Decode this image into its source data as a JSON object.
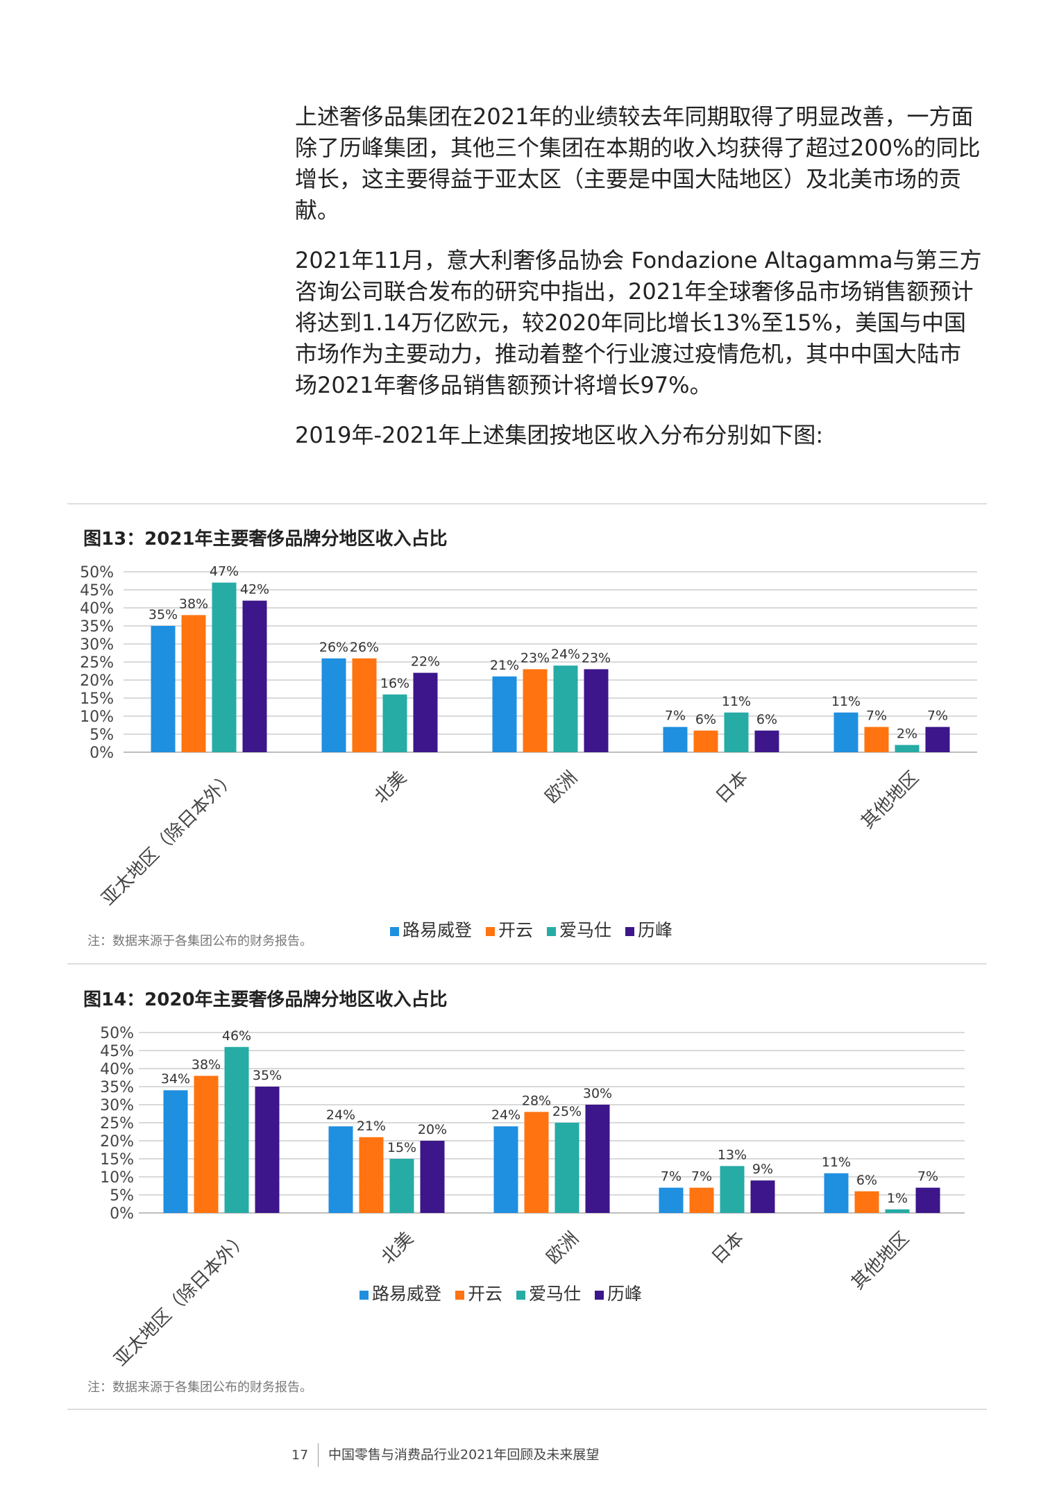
{
  "intro": {
    "p1": "上述奢侈品集团在2021年的业绩较去年同期取得了明显改善，一方面除了历峰集团，其他三个集团在本期的收入均获得了超过200%的同比增长，这主要得益于亚太区（主要是中国大陆地区）及北美市场的贡献。",
    "p2": "2021年11月，意大利奢侈品协会 Fondazione Altagamma与第三方咨询公司联合发布的研究中指出，2021年全球奢侈品市场销售额预计将达到1.14万亿欧元，较2020年同比增长13%至15%，美国与中国市场作为主要动力，推动着整个行业渡过疫情危机，其中中国大陆市场2021年奢侈品销售额预计将增长97%。",
    "p3": "2019年-2021年上述集团按地区收入分布分别如下图:"
  },
  "figures": {
    "fig13": {
      "title": "图13：2021年主要奢侈品牌分地区收入占比",
      "note": "注：数据来源于各集团公布的财务报告。"
    },
    "fig14": {
      "title": "图14：2020年主要奢侈品牌分地区收入占比",
      "note": "注：数据来源于各集团公布的财务报告。"
    }
  },
  "footer": {
    "page_number": "17",
    "publication": "中国零售与消费品行业2021年回顾及未来展望"
  },
  "colors": {
    "lv": "#1f8fe0",
    "kering": "#ff7410",
    "hermes": "#26aba5",
    "richemont": "#3c168a"
  },
  "chart_data": [
    {
      "type": "bar",
      "title": "图13：2021年主要奢侈品牌分地区收入占比",
      "categories": [
        "亚太地区（除日本外）",
        "北美",
        "欧洲",
        "日本",
        "其他地区"
      ],
      "y_ticks": [
        "50%",
        "45%",
        "40%",
        "35%",
        "30%",
        "25%",
        "20%",
        "15%",
        "10%",
        "5%",
        "0%"
      ],
      "ylim": [
        0,
        50
      ],
      "legend_position": "bottom",
      "series": [
        {
          "name": "路易威登",
          "color": "#1f8fe0",
          "values": [
            35,
            26,
            21,
            7,
            11
          ],
          "labels": [
            "35%",
            "26%",
            "21%",
            "7%",
            "11%"
          ]
        },
        {
          "name": "开云",
          "color": "#ff7410",
          "values": [
            38,
            26,
            23,
            6,
            7
          ],
          "labels": [
            "38%",
            "26%",
            "23%",
            "6%",
            "7%"
          ]
        },
        {
          "name": "爱马仕",
          "color": "#26aba5",
          "values": [
            47,
            16,
            24,
            11,
            2
          ],
          "labels": [
            "47%",
            "16%",
            "24%",
            "11%",
            "2%"
          ]
        },
        {
          "name": "历峰",
          "color": "#3c168a",
          "values": [
            42,
            22,
            23,
            6,
            7
          ],
          "labels": [
            "42%",
            "22%",
            "23%",
            "6%",
            "7%"
          ]
        }
      ]
    },
    {
      "type": "bar",
      "title": "图14：2020年主要奢侈品牌分地区收入占比",
      "categories": [
        "亚太地区（除日本外）",
        "北美",
        "欧洲",
        "日本",
        "其他地区"
      ],
      "y_ticks": [
        "50%",
        "45%",
        "40%",
        "35%",
        "30%",
        "25%",
        "20%",
        "15%",
        "10%",
        "5%",
        "0%"
      ],
      "ylim": [
        0,
        50
      ],
      "legend_position": "bottom",
      "series": [
        {
          "name": "路易威登",
          "color": "#1f8fe0",
          "values": [
            34,
            24,
            24,
            7,
            11
          ],
          "labels": [
            "34%",
            "24%",
            "24%",
            "7%",
            "11%"
          ]
        },
        {
          "name": "开云",
          "color": "#ff7410",
          "values": [
            38,
            21,
            28,
            7,
            6
          ],
          "labels": [
            "38%",
            "21%",
            "28%",
            "7%",
            "6%"
          ]
        },
        {
          "name": "爱马仕",
          "color": "#26aba5",
          "values": [
            46,
            15,
            25,
            13,
            1
          ],
          "labels": [
            "46%",
            "15%",
            "25%",
            "13%",
            "1%"
          ]
        },
        {
          "name": "历峰",
          "color": "#3c168a",
          "values": [
            35,
            20,
            30,
            9,
            7
          ],
          "labels": [
            "35%",
            "20%",
            "30%",
            "9%",
            "7%"
          ]
        }
      ]
    }
  ]
}
